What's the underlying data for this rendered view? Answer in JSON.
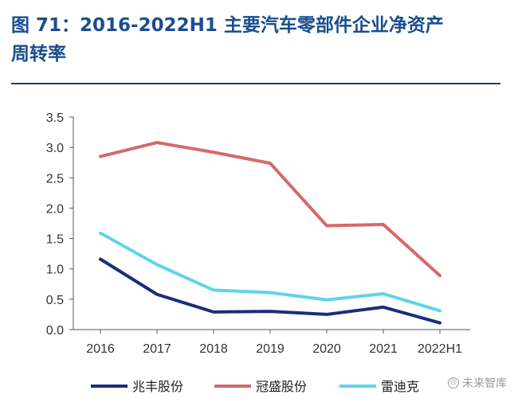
{
  "title_line1": "图 71：2016-2022H1  主要汽车零部件企业净资产",
  "title_line2": "周转率",
  "watermark": "未来智库",
  "chart_data": {
    "type": "line",
    "categories": [
      "2016",
      "2017",
      "2018",
      "2019",
      "2020",
      "2021",
      "2022H1"
    ],
    "ylim": [
      0,
      3.5
    ],
    "yticks": [
      "0.0",
      "0.5",
      "1.0",
      "1.5",
      "2.0",
      "2.5",
      "3.0",
      "3.5"
    ],
    "grid": false,
    "legend_position": "bottom",
    "series": [
      {
        "name": "兆丰股份",
        "color": "#1a2f7a",
        "values": [
          1.16,
          0.58,
          0.29,
          0.3,
          0.25,
          0.37,
          0.11
        ]
      },
      {
        "name": "冠盛股份",
        "color": "#d46a6a",
        "values": [
          2.85,
          3.08,
          2.92,
          2.74,
          1.71,
          1.73,
          0.89
        ]
      },
      {
        "name": "雷迪克",
        "color": "#5fd3ec",
        "values": [
          1.59,
          1.07,
          0.65,
          0.61,
          0.49,
          0.59,
          0.31
        ]
      }
    ]
  }
}
